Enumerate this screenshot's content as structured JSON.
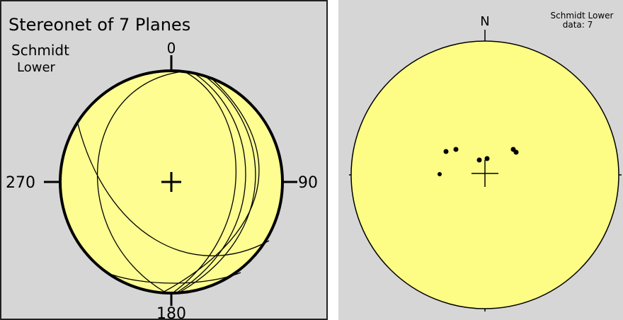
{
  "left_panel": {
    "title": "Stereonet of 7 Planes",
    "projection": "Schmidt",
    "hemisphere": "Lower",
    "labels": {
      "north": "0",
      "east": "90",
      "south": "180",
      "west": "270"
    }
  },
  "right_panel": {
    "north": "N",
    "projection": "Schmidt Lower",
    "count": "data: 7"
  }
}
